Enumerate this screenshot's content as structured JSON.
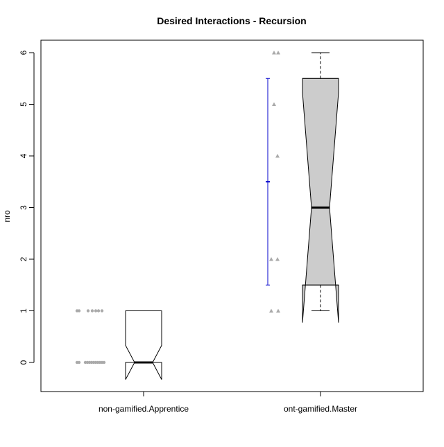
{
  "chart_data": {
    "type": "boxplot",
    "title": "Desired Interactions - Recursion",
    "xlabel": "",
    "ylabel": "nro",
    "ylim": [
      -0.55,
      6.25
    ],
    "y_ticks": [
      0,
      1,
      2,
      3,
      4,
      5,
      6
    ],
    "y_tick_labels": [
      "0",
      "1",
      "2",
      "3",
      "4",
      "5",
      "6"
    ],
    "categories": [
      "non-gamified.Apprentice",
      "ont-gamified.Master"
    ],
    "boxes": [
      {
        "category": "non-gamified.Apprentice",
        "min": 0,
        "q1": 0,
        "median": 0,
        "q3": 1,
        "max": 1,
        "notch_lower": -0.33,
        "notch_upper": 0.33,
        "fill": "#ffffff",
        "points": [
          0,
          0,
          0,
          0,
          0,
          0,
          0,
          0,
          0,
          0,
          0,
          0,
          1,
          1,
          1,
          1,
          1,
          1,
          1
        ],
        "point_marker": "circle",
        "interval": null
      },
      {
        "category": "ont-gamified.Master",
        "min": 1,
        "q1": 1.5,
        "median": 3,
        "q3": 5.5,
        "max": 6,
        "notch_lower": 0.77,
        "notch_upper": 5.23,
        "fill": "#cccccc",
        "points": [
          1,
          1,
          2,
          2,
          4,
          5,
          6,
          6
        ],
        "point_marker": "triangle",
        "interval": {
          "lower": 1.5,
          "center": 3.5,
          "upper": 5.5,
          "color": "#0000cc"
        }
      }
    ],
    "colors": {
      "points": "#aaaaaa",
      "box_stroke": "#000000",
      "interval": "#0000cc"
    }
  }
}
